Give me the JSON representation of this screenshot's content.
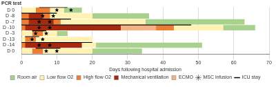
{
  "chart_data": {
    "type": "gantt",
    "orientation": "horizontal",
    "ylabel": "PCR test",
    "xlabel": "Days following hospital admission",
    "xlim": [
      0,
      70
    ],
    "xticks": [
      0,
      10,
      20,
      30,
      40,
      50,
      60,
      70
    ],
    "grid": true,
    "legend": "bottom",
    "categories": [
      "D 0",
      "D -8",
      "D -7",
      "D -10",
      "D -3",
      "D -13",
      "D -14",
      "D 0"
    ],
    "series": [
      {
        "name": "Room air",
        "color": "#a9d18e"
      },
      {
        "name": "Low flow O2",
        "color": "#fff2b3"
      },
      {
        "name": "High flow O2",
        "color": "#ed7d31"
      },
      {
        "name": "Mechanical ventilation",
        "color": "#a5280f"
      },
      {
        "name": "ECMO",
        "color": "#f4b183"
      },
      {
        "name": "MSC infusion",
        "color": "#000000",
        "marker": "star"
      },
      {
        "name": "ICU stay",
        "color": "#000000",
        "line_style": "solid"
      }
    ],
    "rows": [
      {
        "segments": [
          {
            "state": "Low flow O2",
            "start": 0,
            "end": 4
          },
          {
            "state": "High flow O2",
            "start": 4,
            "end": 8
          },
          {
            "state": "Low flow O2",
            "start": 8,
            "end": 12
          },
          {
            "state": "Room air",
            "start": 12,
            "end": 17
          }
        ],
        "msc_infusion": [
          10,
          14
        ],
        "icu_stay": [
          5,
          13
        ]
      },
      {
        "segments": [
          {
            "state": "High flow O2",
            "start": 0,
            "end": 2
          },
          {
            "state": "Mechanical ventilation",
            "start": 2,
            "end": 6
          },
          {
            "state": "High flow O2",
            "start": 6,
            "end": 8
          },
          {
            "state": "Low flow O2",
            "start": 8,
            "end": 20
          },
          {
            "state": "Room air",
            "start": 20,
            "end": 36
          }
        ],
        "msc_infusion": [
          6,
          9
        ],
        "icu_stay": [
          0,
          10
        ]
      },
      {
        "segments": [
          {
            "state": "High flow O2",
            "start": 0,
            "end": 2
          },
          {
            "state": "Mechanical ventilation",
            "start": 2,
            "end": 9
          },
          {
            "state": "High flow O2",
            "start": 9,
            "end": 11
          },
          {
            "state": "Low flow O2",
            "start": 11,
            "end": 35
          },
          {
            "state": "Room air",
            "start": 35,
            "end": 63
          }
        ],
        "msc_infusion": [
          5,
          8
        ],
        "icu_stay": [
          0,
          14
        ]
      },
      {
        "segments": [
          {
            "state": "High flow O2",
            "start": 0,
            "end": 1
          },
          {
            "state": "Mechanical ventilation",
            "start": 1,
            "end": 28
          },
          {
            "state": "ECMO",
            "start": 28,
            "end": 38
          },
          {
            "state": "High flow O2",
            "start": 38,
            "end": 43
          },
          {
            "state": "Low flow O2",
            "start": 43,
            "end": 57
          },
          {
            "state": "Room air",
            "start": 57,
            "end": 66
          }
        ],
        "msc_infusion": [
          5,
          8
        ],
        "icu_stay": [
          0,
          48
        ]
      },
      {
        "segments": [
          {
            "state": "Low flow O2",
            "start": 0,
            "end": 3
          },
          {
            "state": "High flow O2",
            "start": 3,
            "end": 6
          },
          {
            "state": "Low flow O2",
            "start": 6,
            "end": 10
          },
          {
            "state": "Room air",
            "start": 10,
            "end": 13
          }
        ],
        "msc_infusion": [
          4,
          7
        ],
        "icu_stay": [
          3,
          7
        ]
      },
      {
        "segments": [
          {
            "state": "Low flow O2",
            "start": 0,
            "end": 1
          },
          {
            "state": "High flow O2",
            "start": 1,
            "end": 4
          },
          {
            "state": "Low flow O2",
            "start": 4,
            "end": 20
          }
        ],
        "msc_infusion": [
          3,
          6
        ],
        "icu_stay": [
          1,
          5
        ]
      },
      {
        "segments": [
          {
            "state": "High flow O2",
            "start": 0,
            "end": 1
          },
          {
            "state": "Mechanical ventilation",
            "start": 1,
            "end": 17
          },
          {
            "state": "Low flow O2",
            "start": 17,
            "end": 21
          },
          {
            "state": "Room air",
            "start": 21,
            "end": 51
          }
        ],
        "msc_infusion": [
          5,
          8
        ],
        "icu_stay": [
          0,
          20
        ]
      },
      {
        "segments": [
          {
            "state": "Low flow O2",
            "start": 0,
            "end": 3
          },
          {
            "state": "High flow O2",
            "start": 3,
            "end": 6
          },
          {
            "state": "Low flow O2",
            "start": 6,
            "end": 20
          },
          {
            "state": "Room air",
            "start": 20,
            "end": 34
          }
        ],
        "msc_infusion": [
          7,
          10
        ],
        "icu_stay": [
          4,
          11
        ]
      }
    ]
  }
}
